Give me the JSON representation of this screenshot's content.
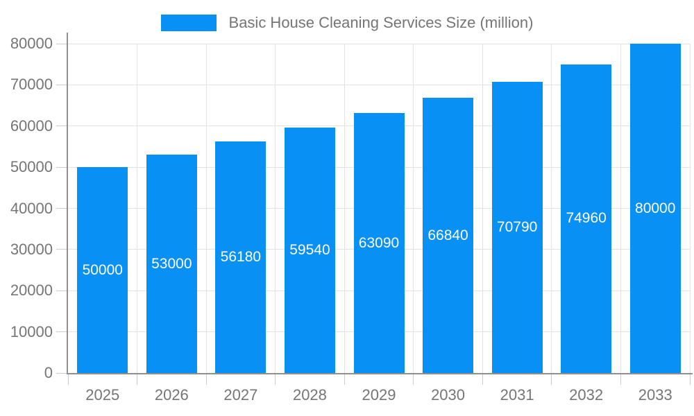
{
  "chart_data": {
    "type": "bar",
    "title": "Basic House Cleaning Services Size (million)",
    "legend": "Basic House Cleaning Services Size (million)",
    "legend_position": "top-center",
    "categories": [
      "2025",
      "2026",
      "2027",
      "2028",
      "2029",
      "2030",
      "2031",
      "2032",
      "2033"
    ],
    "series": [
      {
        "name": "Basic House Cleaning Services Size (million)",
        "values": [
          50000,
          53000,
          56180,
          59540,
          63090,
          66840,
          70790,
          74960,
          80000
        ]
      }
    ],
    "data_labels": [
      "50000",
      "53000",
      "56180",
      "59540",
      "63090",
      "66840",
      "70790",
      "74960",
      "80000"
    ],
    "xlabel": "",
    "ylabel": "",
    "ylim": [
      0,
      80000
    ],
    "yticks": [
      0,
      10000,
      20000,
      30000,
      40000,
      50000,
      60000,
      70000,
      80000
    ],
    "grid": true,
    "colors": {
      "bar": "#0890F5",
      "bar_label_text": "#ffffff",
      "axis_text": "#757575",
      "gridline": "#e2e2e2",
      "axis_line": "#8f8f8f",
      "tick": "#cccccc",
      "background": "#ffffff"
    }
  }
}
